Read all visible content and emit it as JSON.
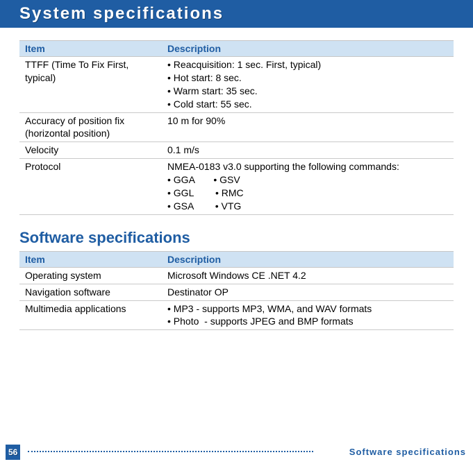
{
  "page": {
    "title": "System specifications",
    "number": "56",
    "footer_label": "Software specifications"
  },
  "tables": {
    "system": {
      "headers": {
        "item": "Item",
        "desc": "Description"
      },
      "rows": [
        {
          "item": "TTFF (Time To Fix First, typical)",
          "desc": "• Reacquisition: 1 sec. First, typical)\n• Hot start: 8 sec.\n• Warm start: 35 sec.\n• Cold start: 55 sec."
        },
        {
          "item": "Accuracy of position fix (horizontal position)",
          "desc": "10 m for 90%"
        },
        {
          "item": "Velocity",
          "desc": "0.1 m/s"
        },
        {
          "item": "Protocol",
          "desc": "NMEA-0183 v3.0 supporting the following commands:\n• GGA       • GSV\n• GGL        • RMC\n• GSA        • VTG"
        }
      ]
    },
    "software": {
      "title": "Software specifications",
      "headers": {
        "item": "Item",
        "desc": "Description"
      },
      "rows": [
        {
          "item": "Operating system",
          "desc": "Microsoft Windows CE .NET 4.2"
        },
        {
          "item": "Navigation software",
          "desc": "Destinator OP"
        },
        {
          "item": "Multimedia applications",
          "desc": "• MP3 - supports MP3, WMA, and WAV formats\n• Photo  - supports JPEG and BMP formats"
        }
      ]
    }
  },
  "style": {
    "accent": "#1f5da3",
    "header_bg": "#cfe2f3",
    "row_border": "#c9c9c9"
  }
}
